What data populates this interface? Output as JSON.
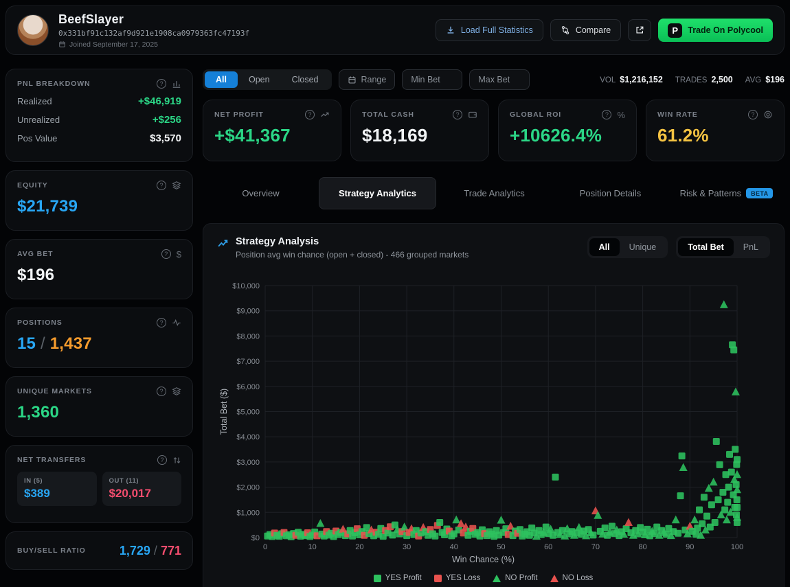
{
  "header": {
    "name": "BeefSlayer",
    "address": "0x331bf91c132af9d921e1908ca0979363fc47193f",
    "joined": "Joined September 17, 2025",
    "load_stats_label": "Load Full Statistics",
    "compare_label": "Compare",
    "trade_label": "Trade On Polycool",
    "trade_logo_letter": "P"
  },
  "sidebar": {
    "pnl": {
      "title": "PNL BREAKDOWN",
      "rows": [
        {
          "label": "Realized",
          "value": "+$46,919"
        },
        {
          "label": "Unrealized",
          "value": "+$256"
        },
        {
          "label": "Pos Value",
          "value": "$3,570"
        }
      ]
    },
    "equity": {
      "title": "EQUITY",
      "value": "$21,739"
    },
    "avg_bet": {
      "title": "AVG BET",
      "value": "$196"
    },
    "positions": {
      "title": "POSITIONS",
      "open": "15",
      "sep": "/",
      "total": "1,437"
    },
    "unique_markets": {
      "title": "UNIQUE MARKETS",
      "value": "1,360"
    },
    "net_transfers": {
      "title": "NET TRANSFERS",
      "in_label": "IN (5)",
      "in_value": "$389",
      "out_label": "OUT (11)",
      "out_value": "$20,017"
    },
    "buy_sell": {
      "title": "BUY/SELL RATIO",
      "buy": "1,729",
      "sep": "/",
      "sell": "771"
    }
  },
  "filters": {
    "segments": [
      "All",
      "Open",
      "Closed"
    ],
    "active_segment": "All",
    "range_label": "Range",
    "min_bet_placeholder": "Min Bet",
    "max_bet_placeholder": "Max Bet"
  },
  "topstats": [
    {
      "label": "VOL",
      "value": "$1,216,152"
    },
    {
      "label": "TRADES",
      "value": "2,500"
    },
    {
      "label": "AVG",
      "value": "$196"
    }
  ],
  "stat_cards": [
    {
      "label": "NET PROFIT",
      "value": "+$41,367",
      "color": "green",
      "icon": "trend-up"
    },
    {
      "label": "TOTAL CASH",
      "value": "$18,169",
      "color": "white",
      "icon": "wallet"
    },
    {
      "label": "GLOBAL ROI",
      "value": "+10626.4%",
      "color": "green",
      "icon": "percent"
    },
    {
      "label": "WIN RATE",
      "value": "61.2%",
      "color": "yellow",
      "icon": "target"
    }
  ],
  "tabs": [
    {
      "label": "Overview",
      "active": false
    },
    {
      "label": "Strategy Analytics",
      "active": true
    },
    {
      "label": "Trade Analytics",
      "active": false
    },
    {
      "label": "Position Details",
      "active": false
    },
    {
      "label": "Risk & Patterns",
      "active": false,
      "badge": "BETA"
    }
  ],
  "chart": {
    "title": "Strategy Analysis",
    "subtitle": "Position avg win chance (open + closed) - 466 grouped markets",
    "toggle_scope": {
      "options": [
        "All",
        "Unique"
      ],
      "active": "All"
    },
    "toggle_metric": {
      "options": [
        "Total Bet",
        "PnL"
      ],
      "active": "Total Bet"
    }
  },
  "chart_data": {
    "type": "scatter",
    "title": "Strategy Analysis",
    "xlabel": "Win Chance (%)",
    "ylabel": "Total Bet ($)",
    "xlim": [
      0,
      100
    ],
    "ylim": [
      0,
      10000
    ],
    "xticks": [
      0,
      10,
      20,
      30,
      40,
      50,
      60,
      70,
      80,
      90,
      100
    ],
    "yticks": [
      0,
      1000,
      2000,
      3000,
      4000,
      5000,
      6000,
      7000,
      8000,
      9000,
      10000
    ],
    "ytick_labels": [
      "$0",
      "$1,000",
      "$2,000",
      "$3,000",
      "$4,000",
      "$5,000",
      "$6,000",
      "$7,000",
      "$8,000",
      "$9,000",
      "$10,000"
    ],
    "grid": true,
    "legend_position": "bottom",
    "point_types": [
      "YES Profit",
      "YES Loss",
      "NO Profit",
      "NO Loss"
    ],
    "legend": [
      {
        "label": "YES Profit",
        "marker": "square",
        "color": "#2dc15e"
      },
      {
        "label": "YES Loss",
        "marker": "square",
        "color": "#e8524e"
      },
      {
        "label": "NO Profit",
        "marker": "triangle",
        "color": "#2dc15e"
      },
      {
        "label": "NO Loss",
        "marker": "triangle",
        "color": "#e8524e"
      }
    ],
    "points": [
      [
        0.5,
        60,
        0
      ],
      [
        1,
        120,
        0
      ],
      [
        1.5,
        40,
        0
      ],
      [
        2,
        180,
        1
      ],
      [
        2.5,
        90,
        0
      ],
      [
        3,
        50,
        0
      ],
      [
        3.5,
        150,
        0
      ],
      [
        4,
        200,
        1
      ],
      [
        4.5,
        70,
        0
      ],
      [
        5,
        110,
        0
      ],
      [
        5.5,
        30,
        0
      ],
      [
        6,
        160,
        0
      ],
      [
        6.5,
        90,
        1
      ],
      [
        7,
        210,
        0
      ],
      [
        7.5,
        55,
        0
      ],
      [
        8,
        130,
        0
      ],
      [
        8.5,
        80,
        0
      ],
      [
        9,
        190,
        1
      ],
      [
        9.5,
        45,
        0
      ],
      [
        10,
        100,
        0
      ],
      [
        10.5,
        220,
        0
      ],
      [
        11,
        70,
        1
      ],
      [
        11.7,
        560,
        2
      ],
      [
        12,
        140,
        0
      ],
      [
        12.5,
        60,
        0
      ],
      [
        13,
        240,
        1
      ],
      [
        13.5,
        100,
        0
      ],
      [
        14,
        170,
        0
      ],
      [
        14.5,
        40,
        0
      ],
      [
        15,
        260,
        1
      ],
      [
        15.5,
        120,
        0
      ],
      [
        16,
        200,
        0
      ],
      [
        16.5,
        330,
        3
      ],
      [
        17,
        80,
        0
      ],
      [
        17.5,
        150,
        1
      ],
      [
        18,
        280,
        0
      ],
      [
        18.5,
        60,
        0
      ],
      [
        19,
        190,
        0
      ],
      [
        19.5,
        350,
        1
      ],
      [
        20,
        110,
        0
      ],
      [
        20.5,
        240,
        0
      ],
      [
        21,
        90,
        1
      ],
      [
        21.5,
        400,
        0
      ],
      [
        22,
        160,
        0
      ],
      [
        22.5,
        300,
        3
      ],
      [
        23,
        70,
        0
      ],
      [
        23.5,
        210,
        1
      ],
      [
        24,
        130,
        0
      ],
      [
        24.5,
        360,
        0
      ],
      [
        25,
        50,
        0
      ],
      [
        25.5,
        280,
        1
      ],
      [
        26,
        180,
        0
      ],
      [
        26.5,
        430,
        1
      ],
      [
        27,
        100,
        0
      ],
      [
        27.5,
        500,
        0
      ],
      [
        28,
        320,
        2
      ],
      [
        28.5,
        150,
        0
      ],
      [
        29,
        240,
        1
      ],
      [
        29.5,
        420,
        2
      ],
      [
        30,
        80,
        0
      ],
      [
        30.5,
        200,
        1
      ],
      [
        31,
        350,
        3
      ],
      [
        31.5,
        120,
        0
      ],
      [
        32,
        280,
        0
      ],
      [
        32.5,
        60,
        1
      ],
      [
        33,
        180,
        0
      ],
      [
        33.5,
        400,
        3
      ],
      [
        34,
        240,
        0
      ],
      [
        34.5,
        90,
        0
      ],
      [
        35,
        320,
        1
      ],
      [
        35.5,
        150,
        0
      ],
      [
        36,
        60,
        0
      ],
      [
        36.5,
        480,
        1
      ],
      [
        37,
        600,
        0
      ],
      [
        37.5,
        200,
        0
      ],
      [
        38,
        110,
        0
      ],
      [
        38.5,
        340,
        0
      ],
      [
        39,
        260,
        1
      ],
      [
        39.5,
        70,
        0
      ],
      [
        40,
        150,
        0
      ],
      [
        40.5,
        700,
        2
      ],
      [
        41,
        300,
        0
      ],
      [
        41.5,
        550,
        3
      ],
      [
        42,
        180,
        1
      ],
      [
        42.5,
        420,
        3
      ],
      [
        43,
        90,
        0
      ],
      [
        43.5,
        250,
        0
      ],
      [
        44,
        360,
        1
      ],
      [
        44.5,
        130,
        0
      ],
      [
        45,
        200,
        0
      ],
      [
        45.5,
        60,
        0
      ],
      [
        46,
        310,
        0
      ],
      [
        46.5,
        160,
        1
      ],
      [
        47,
        80,
        0
      ],
      [
        47.5,
        230,
        0
      ],
      [
        48,
        140,
        0
      ],
      [
        48.5,
        50,
        0
      ],
      [
        49,
        280,
        0
      ],
      [
        49.5,
        100,
        0
      ],
      [
        50,
        690,
        2
      ],
      [
        50.5,
        200,
        0
      ],
      [
        51,
        350,
        0
      ],
      [
        51.5,
        120,
        1
      ],
      [
        52,
        450,
        3
      ],
      [
        52.5,
        80,
        0
      ],
      [
        53,
        260,
        0
      ],
      [
        53.5,
        170,
        1
      ],
      [
        54,
        320,
        0
      ],
      [
        54.5,
        60,
        0
      ],
      [
        55,
        140,
        0
      ],
      [
        55.5,
        230,
        0
      ],
      [
        56,
        90,
        0
      ],
      [
        56.5,
        380,
        0
      ],
      [
        57,
        180,
        0
      ],
      [
        57.5,
        50,
        2
      ],
      [
        58,
        280,
        0
      ],
      [
        58.5,
        120,
        0
      ],
      [
        59,
        200,
        2
      ],
      [
        59.5,
        420,
        0
      ],
      [
        60,
        160,
        0
      ],
      [
        60.5,
        330,
        2
      ],
      [
        61,
        90,
        0
      ],
      [
        61.5,
        2400,
        0
      ],
      [
        62,
        200,
        0
      ],
      [
        62.5,
        120,
        2
      ],
      [
        63,
        280,
        0
      ],
      [
        63.5,
        60,
        2
      ],
      [
        64,
        350,
        2
      ],
      [
        64.5,
        150,
        0
      ],
      [
        65,
        240,
        0
      ],
      [
        65.5,
        90,
        2
      ],
      [
        66,
        180,
        0
      ],
      [
        66.5,
        400,
        2
      ],
      [
        67,
        130,
        0
      ],
      [
        67.5,
        260,
        0
      ],
      [
        68,
        70,
        2
      ],
      [
        68.5,
        320,
        0
      ],
      [
        69,
        190,
        2
      ],
      [
        69.5,
        100,
        0
      ],
      [
        70,
        1060,
        3
      ],
      [
        70.5,
        880,
        2
      ],
      [
        71,
        250,
        0
      ],
      [
        71.5,
        140,
        2
      ],
      [
        72,
        380,
        0
      ],
      [
        72.5,
        90,
        0
      ],
      [
        73,
        210,
        2
      ],
      [
        73.5,
        450,
        0
      ],
      [
        74,
        160,
        0
      ],
      [
        74.5,
        300,
        2
      ],
      [
        75,
        80,
        0
      ],
      [
        75.5,
        230,
        0
      ],
      [
        76,
        130,
        2
      ],
      [
        76.5,
        350,
        0
      ],
      [
        77,
        600,
        3
      ],
      [
        77.5,
        190,
        0
      ],
      [
        78,
        90,
        2
      ],
      [
        78.5,
        280,
        0
      ],
      [
        79,
        150,
        2
      ],
      [
        79.5,
        400,
        0
      ],
      [
        80,
        220,
        0
      ],
      [
        80.5,
        110,
        2
      ],
      [
        81,
        330,
        0
      ],
      [
        81.5,
        70,
        0
      ],
      [
        82,
        250,
        2
      ],
      [
        82.5,
        160,
        0
      ],
      [
        83,
        420,
        0
      ],
      [
        83.5,
        90,
        2
      ],
      [
        84,
        280,
        0
      ],
      [
        84.5,
        200,
        2
      ],
      [
        85,
        130,
        0
      ],
      [
        85.5,
        360,
        0
      ],
      [
        86,
        80,
        2
      ],
      [
        86.5,
        240,
        0
      ],
      [
        87,
        700,
        2
      ],
      [
        87.5,
        170,
        0
      ],
      [
        88,
        1660,
        0
      ],
      [
        88.3,
        3240,
        0
      ],
      [
        88.6,
        2780,
        2
      ],
      [
        89,
        300,
        0
      ],
      [
        89.5,
        150,
        2
      ],
      [
        90,
        450,
        3
      ],
      [
        90.5,
        250,
        0
      ],
      [
        91,
        700,
        2
      ],
      [
        91.3,
        130,
        0
      ],
      [
        91.6,
        380,
        0
      ],
      [
        92,
        1100,
        0
      ],
      [
        92.3,
        90,
        2
      ],
      [
        92.6,
        550,
        0
      ],
      [
        93,
        1600,
        0
      ],
      [
        93.3,
        300,
        2
      ],
      [
        93.6,
        850,
        0
      ],
      [
        94,
        1950,
        2
      ],
      [
        94.3,
        420,
        0
      ],
      [
        94.6,
        1300,
        0
      ],
      [
        95,
        2200,
        2
      ],
      [
        95.3,
        600,
        0
      ],
      [
        95.6,
        3815,
        0
      ],
      [
        96,
        1500,
        0
      ],
      [
        96.3,
        2890,
        0
      ],
      [
        96.6,
        900,
        2
      ],
      [
        97,
        1800,
        0
      ],
      [
        97.2,
        9240,
        2
      ],
      [
        97.4,
        1100,
        0
      ],
      [
        97.6,
        2500,
        0
      ],
      [
        97.8,
        700,
        2
      ],
      [
        98,
        1400,
        0
      ],
      [
        98.2,
        2000,
        0
      ],
      [
        98.4,
        3300,
        0
      ],
      [
        98.6,
        1000,
        2
      ],
      [
        98.8,
        2600,
        0
      ],
      [
        99,
        7650,
        0
      ],
      [
        99.2,
        1700,
        0
      ],
      [
        99.3,
        7450,
        0
      ],
      [
        99.4,
        2300,
        2
      ],
      [
        99.5,
        1200,
        0
      ],
      [
        99.6,
        3500,
        0
      ],
      [
        99.7,
        5780,
        2
      ],
      [
        99.8,
        2100,
        0
      ],
      [
        99.85,
        900,
        0
      ],
      [
        99.9,
        2900,
        0
      ],
      [
        99.95,
        1500,
        0
      ],
      [
        100,
        600,
        0
      ],
      [
        100,
        1900,
        2
      ],
      [
        100,
        3100,
        0
      ],
      [
        100,
        2500,
        2
      ],
      [
        100,
        1200,
        0
      ],
      [
        100,
        800,
        2
      ]
    ],
    "colors": {
      "profit": "#2dc15e",
      "loss": "#e8524e"
    }
  }
}
